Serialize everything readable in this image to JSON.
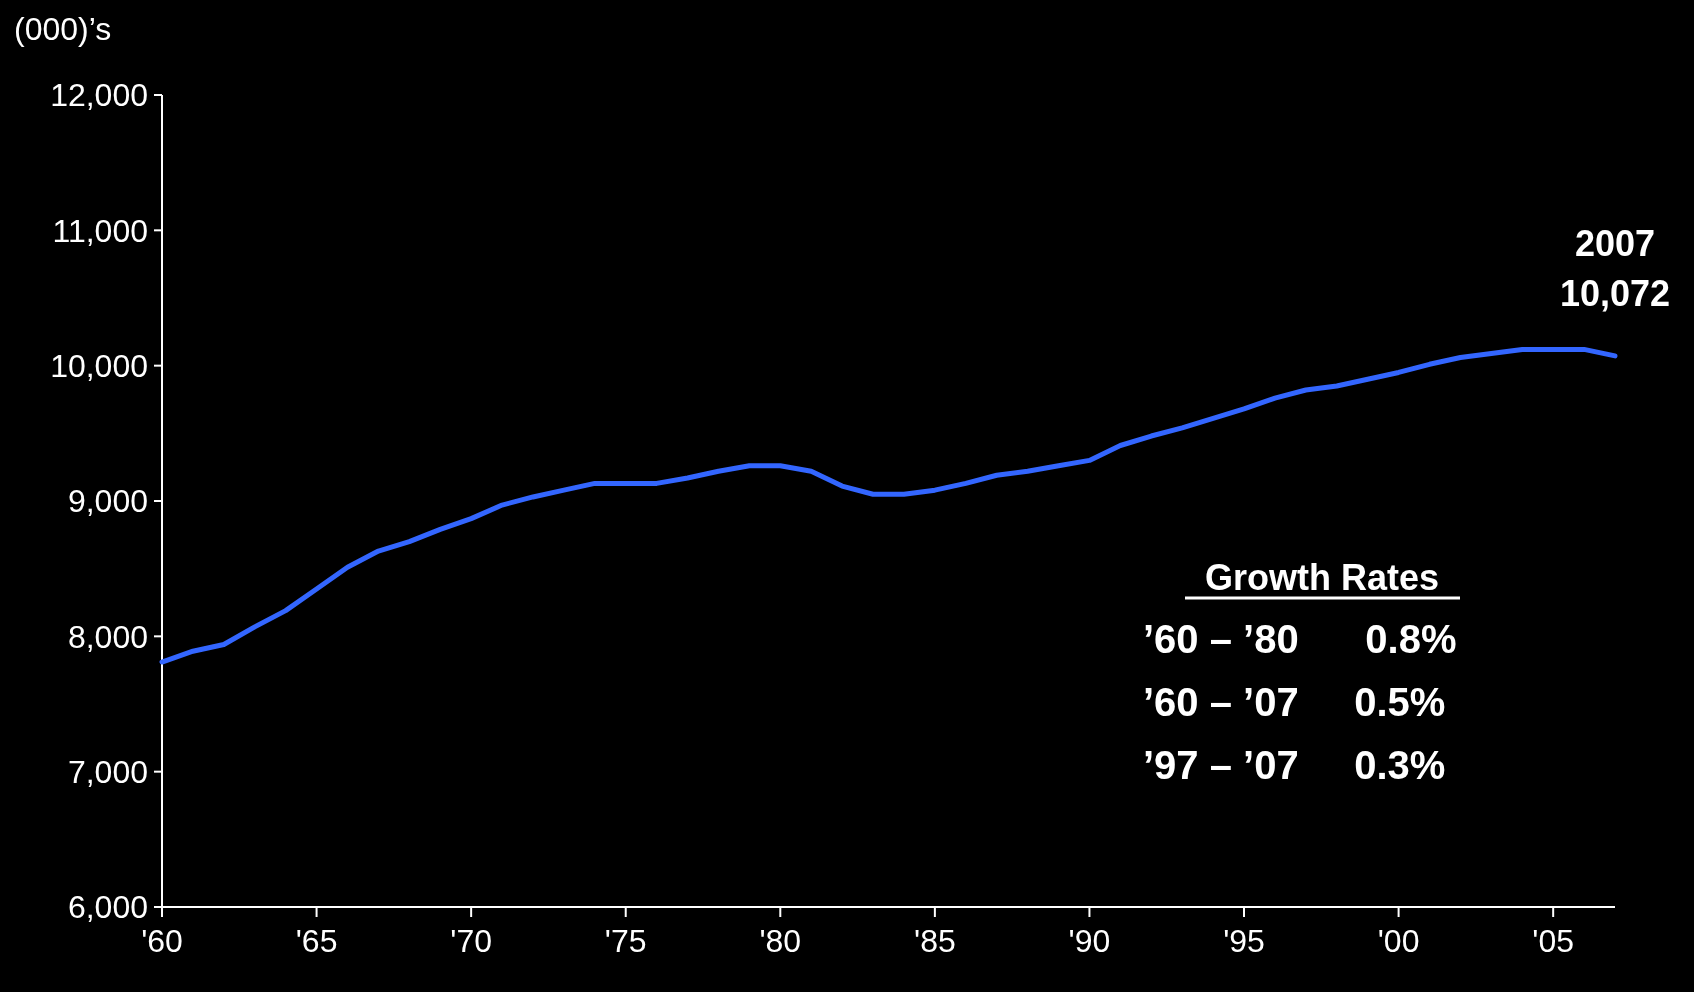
{
  "chart_data": {
    "type": "line",
    "ylabel": "(000)’s",
    "x": [
      1960,
      1961,
      1962,
      1963,
      1964,
      1965,
      1966,
      1967,
      1968,
      1969,
      1970,
      1971,
      1972,
      1973,
      1974,
      1975,
      1976,
      1977,
      1978,
      1979,
      1980,
      1981,
      1982,
      1983,
      1984,
      1985,
      1986,
      1987,
      1988,
      1989,
      1990,
      1991,
      1992,
      1993,
      1994,
      1995,
      1996,
      1997,
      1998,
      1999,
      2000,
      2001,
      2002,
      2003,
      2004,
      2005,
      2006,
      2007
    ],
    "series": [
      {
        "color": "#3366ff",
        "values": [
          7810,
          7890,
          7940,
          8070,
          8190,
          8350,
          8510,
          8630,
          8700,
          8790,
          8870,
          8970,
          9030,
          9080,
          9130,
          9130,
          9130,
          9170,
          9220,
          9260,
          9260,
          9220,
          9110,
          9050,
          9050,
          9080,
          9130,
          9190,
          9220,
          9260,
          9300,
          9410,
          9480,
          9540,
          9610,
          9680,
          9760,
          9820,
          9850,
          9900,
          9950,
          10010,
          10060,
          10090,
          10120,
          10120,
          10120,
          10072
        ]
      }
    ],
    "xlim": [
      1960,
      2007
    ],
    "xticks": [
      {
        "value": 1960,
        "label": "'60"
      },
      {
        "value": 1965,
        "label": "'65"
      },
      {
        "value": 1970,
        "label": "'70"
      },
      {
        "value": 1975,
        "label": "'75"
      },
      {
        "value": 1980,
        "label": "'80"
      },
      {
        "value": 1985,
        "label": "'85"
      },
      {
        "value": 1990,
        "label": "'90"
      },
      {
        "value": 1995,
        "label": "'95"
      },
      {
        "value": 2000,
        "label": "'00"
      },
      {
        "value": 2005,
        "label": "'05"
      }
    ],
    "ylim": [
      6000,
      12000
    ],
    "yticks": [
      {
        "value": 6000,
        "label": "6,000"
      },
      {
        "value": 7000,
        "label": "7,000"
      },
      {
        "value": 8000,
        "label": "8,000"
      },
      {
        "value": 9000,
        "label": "9,000"
      },
      {
        "value": 10000,
        "label": "10,000"
      },
      {
        "value": 11000,
        "label": "11,000"
      },
      {
        "value": 12000,
        "label": "12,000"
      }
    ],
    "annotations": [
      {
        "text": "2007\n10,072",
        "x": 2007,
        "y": 10072
      },
      "Growth Rates",
      "’60 – ’80      0.8%",
      "’60 – ’07     0.5%",
      "’97 – ’07     0.3%"
    ],
    "grid": false,
    "marker": "none",
    "line_style": "solid"
  }
}
